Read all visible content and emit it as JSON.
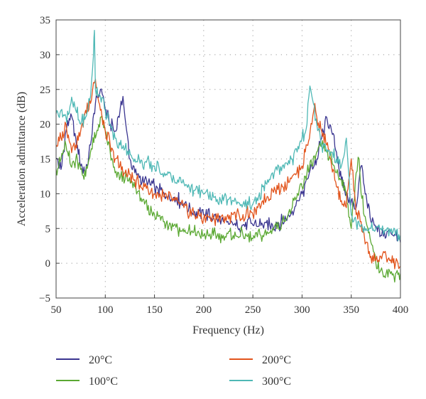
{
  "chart_data": {
    "type": "line",
    "xlabel": "Frequency (Hz)",
    "ylabel": "Acceleration admittance (dB)",
    "xlim": [
      50,
      400
    ],
    "ylim": [
      -5,
      35
    ],
    "x_ticks": [
      50,
      100,
      150,
      200,
      250,
      300,
      350,
      400
    ],
    "y_ticks": [
      -5,
      0,
      5,
      10,
      15,
      20,
      25,
      30,
      35
    ],
    "grid": true,
    "legend_position": "bottom",
    "series": [
      {
        "name": "20°C",
        "color": "#3a3590",
        "points": [
          [
            50,
            15
          ],
          [
            55,
            13.5
          ],
          [
            60,
            19
          ],
          [
            65,
            21.5
          ],
          [
            70,
            18
          ],
          [
            75,
            14
          ],
          [
            80,
            13
          ],
          [
            85,
            17
          ],
          [
            90,
            23
          ],
          [
            95,
            25
          ],
          [
            98,
            24
          ],
          [
            100,
            22
          ],
          [
            105,
            20
          ],
          [
            110,
            19
          ],
          [
            115,
            22
          ],
          [
            118,
            24
          ],
          [
            120,
            21
          ],
          [
            125,
            15
          ],
          [
            130,
            13
          ],
          [
            140,
            12
          ],
          [
            150,
            11
          ],
          [
            160,
            10
          ],
          [
            170,
            9.5
          ],
          [
            180,
            8.5
          ],
          [
            190,
            7.5
          ],
          [
            200,
            7
          ],
          [
            210,
            6.5
          ],
          [
            220,
            6
          ],
          [
            230,
            5.5
          ],
          [
            240,
            5.5
          ],
          [
            250,
            5.5
          ],
          [
            260,
            5.5
          ],
          [
            270,
            5.5
          ],
          [
            280,
            6
          ],
          [
            290,
            7.5
          ],
          [
            300,
            10
          ],
          [
            310,
            14
          ],
          [
            315,
            15
          ],
          [
            320,
            18
          ],
          [
            325,
            21
          ],
          [
            330,
            19
          ],
          [
            335,
            16
          ],
          [
            340,
            12
          ],
          [
            345,
            10
          ],
          [
            350,
            9
          ],
          [
            355,
            8
          ],
          [
            360,
            14
          ],
          [
            365,
            10
          ],
          [
            370,
            6
          ],
          [
            375,
            5
          ],
          [
            380,
            4
          ],
          [
            390,
            4.5
          ],
          [
            395,
            4
          ],
          [
            400,
            3
          ]
        ]
      },
      {
        "name": "100°C",
        "color": "#5aa832",
        "points": [
          [
            50,
            13.5
          ],
          [
            55,
            15
          ],
          [
            60,
            17
          ],
          [
            65,
            14
          ],
          [
            70,
            15
          ],
          [
            75,
            13.5
          ],
          [
            80,
            12.5
          ],
          [
            85,
            16
          ],
          [
            90,
            18
          ],
          [
            95,
            21
          ],
          [
            100,
            19
          ],
          [
            105,
            16
          ],
          [
            110,
            13
          ],
          [
            120,
            12
          ],
          [
            130,
            11
          ],
          [
            140,
            8.5
          ],
          [
            150,
            7
          ],
          [
            160,
            6
          ],
          [
            170,
            5.5
          ],
          [
            180,
            4.5
          ],
          [
            190,
            4.5
          ],
          [
            200,
            4
          ],
          [
            210,
            4
          ],
          [
            220,
            4
          ],
          [
            230,
            4
          ],
          [
            240,
            4
          ],
          [
            250,
            3.5
          ],
          [
            260,
            4
          ],
          [
            270,
            5
          ],
          [
            280,
            6
          ],
          [
            290,
            8
          ],
          [
            300,
            11
          ],
          [
            305,
            13
          ],
          [
            310,
            14
          ],
          [
            315,
            16
          ],
          [
            320,
            17
          ],
          [
            325,
            16
          ],
          [
            330,
            15
          ],
          [
            335,
            13
          ],
          [
            340,
            12
          ],
          [
            345,
            10
          ],
          [
            350,
            5
          ],
          [
            355,
            13
          ],
          [
            358,
            15
          ],
          [
            360,
            10
          ],
          [
            365,
            6
          ],
          [
            370,
            3
          ],
          [
            375,
            0
          ],
          [
            380,
            -1
          ],
          [
            390,
            -1.5
          ],
          [
            395,
            -1.5
          ],
          [
            400,
            -1.5
          ]
        ]
      },
      {
        "name": "200°C",
        "color": "#e2541c",
        "points": [
          [
            50,
            17
          ],
          [
            55,
            18
          ],
          [
            60,
            20
          ],
          [
            65,
            17
          ],
          [
            70,
            17
          ],
          [
            75,
            19
          ],
          [
            80,
            22
          ],
          [
            85,
            23
          ],
          [
            88,
            26
          ],
          [
            90,
            26.5
          ],
          [
            95,
            22
          ],
          [
            100,
            19
          ],
          [
            105,
            17
          ],
          [
            110,
            15
          ],
          [
            120,
            13
          ],
          [
            130,
            12
          ],
          [
            140,
            11
          ],
          [
            150,
            10
          ],
          [
            160,
            9.5
          ],
          [
            170,
            9
          ],
          [
            180,
            8
          ],
          [
            190,
            7
          ],
          [
            200,
            6.5
          ],
          [
            210,
            6.5
          ],
          [
            220,
            6.5
          ],
          [
            230,
            7
          ],
          [
            240,
            7
          ],
          [
            250,
            7
          ],
          [
            255,
            8
          ],
          [
            260,
            9
          ],
          [
            270,
            10.5
          ],
          [
            280,
            11
          ],
          [
            290,
            12.5
          ],
          [
            300,
            14
          ],
          [
            305,
            17
          ],
          [
            310,
            20
          ],
          [
            313,
            23
          ],
          [
            315,
            21
          ],
          [
            320,
            19
          ],
          [
            325,
            17
          ],
          [
            330,
            14
          ],
          [
            335,
            11
          ],
          [
            340,
            9
          ],
          [
            345,
            8
          ],
          [
            350,
            15
          ],
          [
            355,
            7
          ],
          [
            360,
            6
          ],
          [
            365,
            3
          ],
          [
            370,
            1
          ],
          [
            375,
            0.5
          ],
          [
            380,
            1
          ],
          [
            390,
            0.5
          ],
          [
            395,
            0
          ],
          [
            400,
            -0.5
          ]
        ]
      },
      {
        "name": "300°C",
        "color": "#4eb8b5",
        "points": [
          [
            50,
            21.5
          ],
          [
            55,
            22
          ],
          [
            60,
            21
          ],
          [
            65,
            23
          ],
          [
            70,
            22
          ],
          [
            75,
            20
          ],
          [
            80,
            21
          ],
          [
            85,
            24
          ],
          [
            88,
            30
          ],
          [
            89,
            33.5
          ],
          [
            90,
            25
          ],
          [
            95,
            24
          ],
          [
            100,
            22
          ],
          [
            105,
            20
          ],
          [
            110,
            18
          ],
          [
            115,
            17
          ],
          [
            120,
            16.5
          ],
          [
            130,
            15
          ],
          [
            140,
            14.5
          ],
          [
            150,
            14
          ],
          [
            160,
            13
          ],
          [
            170,
            12
          ],
          [
            180,
            11.5
          ],
          [
            190,
            10.5
          ],
          [
            200,
            10
          ],
          [
            210,
            9.5
          ],
          [
            220,
            9
          ],
          [
            230,
            9
          ],
          [
            240,
            8.5
          ],
          [
            250,
            8.5
          ],
          [
            255,
            9
          ],
          [
            260,
            11
          ],
          [
            265,
            12
          ],
          [
            270,
            13
          ],
          [
            280,
            14
          ],
          [
            290,
            15
          ],
          [
            295,
            16
          ],
          [
            300,
            18
          ],
          [
            305,
            20
          ],
          [
            308,
            25.5
          ],
          [
            310,
            24
          ],
          [
            315,
            20
          ],
          [
            320,
            17
          ],
          [
            325,
            16
          ],
          [
            330,
            16
          ],
          [
            335,
            15
          ],
          [
            340,
            14
          ],
          [
            345,
            18
          ],
          [
            348,
            12
          ],
          [
            350,
            7
          ],
          [
            355,
            6
          ],
          [
            360,
            5.5
          ],
          [
            365,
            5
          ],
          [
            370,
            5
          ],
          [
            380,
            5
          ],
          [
            390,
            4.5
          ],
          [
            395,
            4
          ],
          [
            400,
            4
          ]
        ]
      }
    ]
  }
}
